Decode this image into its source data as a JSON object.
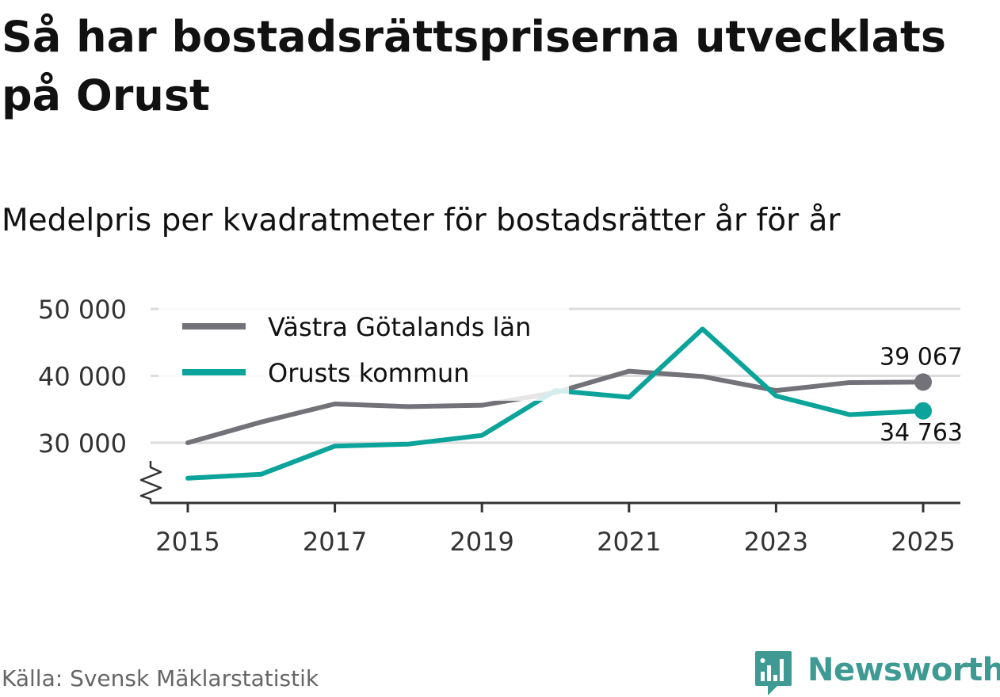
{
  "title": "Så har bostadsrättspriserna utvecklats på Orust",
  "subtitle": "Medelpris per kvadratmeter för bostadsrätter år för år",
  "source": "Källa: Svensk Mäklarstatistik",
  "brand": {
    "name": "Newsworthy",
    "logo_icon": "bar-chart-speech-icon"
  },
  "colors": {
    "vgl": "#737278",
    "orust": "#0ba39a",
    "grid": "#dcdcdc",
    "axis": "#333333",
    "text": "#333333"
  },
  "chart_data": {
    "type": "line",
    "title": "Så har bostadsrättspriserna utvecklats på Orust",
    "subtitle": "Medelpris per kvadratmeter för bostadsrätter år för år",
    "x": [
      2015,
      2016,
      2017,
      2018,
      2019,
      2020,
      2021,
      2022,
      2023,
      2024,
      2025
    ],
    "x_ticks": [
      2015,
      2017,
      2019,
      2021,
      2023,
      2025
    ],
    "x_tick_labels": [
      "2015",
      "2017",
      "2019",
      "2021",
      "2023",
      "2025"
    ],
    "y_ticks": [
      30000,
      40000,
      50000
    ],
    "y_tick_labels": [
      "30 000",
      "40 000",
      "50 000"
    ],
    "ylim": [
      21000,
      51000
    ],
    "axis_break": true,
    "grid": true,
    "legend_position": "top-left",
    "series": [
      {
        "name": "Västra Götalands län",
        "color": "#737278",
        "values": [
          30000,
          33100,
          35800,
          35400,
          35600,
          37500,
          40700,
          39900,
          37800,
          39000,
          39067
        ],
        "end_label": "39 067"
      },
      {
        "name": "Orusts kommun",
        "color": "#0ba39a",
        "values": [
          24700,
          25300,
          29500,
          29800,
          31100,
          37800,
          36800,
          47000,
          37000,
          34200,
          34763
        ],
        "end_label": "34 763"
      }
    ]
  }
}
